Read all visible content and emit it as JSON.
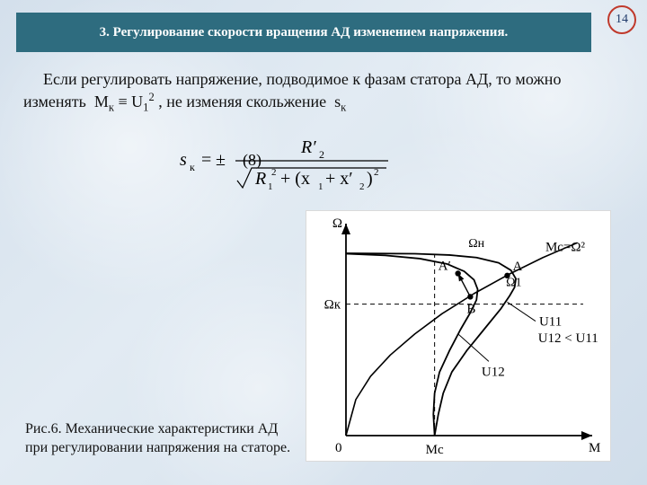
{
  "page_number": "14",
  "header": {
    "bg": "#2e6c7f",
    "color": "#ffffff",
    "text": "3. Регулирование скорости вращения АД изменением напряжения."
  },
  "paragraph": {
    "text_html": "Если регулировать напряжение, подводимое к фазам статора АД, то можно изменять&nbsp; M<sub>к</sub> ≡ U<sub>1</sub><sup>2</sup> , не изменяя скольжение&nbsp; s<sub>к</sub>"
  },
  "formula": {
    "lhs": "s",
    "lhs_sub": "к",
    "pm": "±",
    "num_R": "R′",
    "num_sub": "2",
    "den_R": "R",
    "den_R_sub": "1",
    "den_R_sup": "2",
    "den_plus": "+ (x",
    "den_x1_sub": "1",
    "den_mid": " + x′",
    "den_x2_sub": "2",
    "den_close": ")",
    "den_sq": "2",
    "eq_num": "(8)"
  },
  "caption": {
    "text": "Рис.6. Механические характеристики АД при регулировании напряжения на статоре."
  },
  "chart": {
    "background": "#ffffff",
    "axis_color": "#000000",
    "curve_color": "#000000",
    "dash_color": "#000000",
    "font": "14px Times New Roman",
    "xlabel": "M",
    "ylabel": "Ω",
    "origin_label": "0",
    "x_tick_label": "Mс",
    "y_label_left": "Ωк",
    "top_label_omegaN": "Ωн",
    "top_label_omega1": "Ω1",
    "label_A": "A",
    "label_Aprime": "A′",
    "label_B": "B",
    "label_Mc_curve": "Mс=Ω²",
    "label_U11": "U11",
    "label_U12": "U12",
    "label_U_ineq": "U12 < U11",
    "margin": {
      "l": 44,
      "r": 22,
      "t": 14,
      "b": 30
    },
    "xrange": [
      0,
      10
    ],
    "yrange": [
      0,
      10
    ],
    "dash_y": 6.2,
    "dash_x": 3.6,
    "omega_top": 8.6,
    "curve_U11": [
      [
        3.6,
        0
      ],
      [
        3.75,
        1.0
      ],
      [
        3.95,
        2.0
      ],
      [
        4.3,
        3.0
      ],
      [
        4.9,
        4.0
      ],
      [
        5.6,
        5.0
      ],
      [
        6.3,
        6.0
      ],
      [
        6.65,
        6.6
      ],
      [
        6.85,
        7.0
      ],
      [
        6.9,
        7.4
      ],
      [
        6.7,
        7.8
      ],
      [
        6.2,
        8.15
      ],
      [
        5.3,
        8.4
      ],
      [
        4.2,
        8.52
      ],
      [
        2.8,
        8.58
      ],
      [
        0,
        8.6
      ]
    ],
    "curve_U12": [
      [
        3.6,
        0
      ],
      [
        3.55,
        1.0
      ],
      [
        3.6,
        2.0
      ],
      [
        3.8,
        3.0
      ],
      [
        4.2,
        4.0
      ],
      [
        4.65,
        5.0
      ],
      [
        5.05,
        5.8
      ],
      [
        5.3,
        6.4
      ],
      [
        5.35,
        6.9
      ],
      [
        5.2,
        7.35
      ],
      [
        4.8,
        7.75
      ],
      [
        4.1,
        8.1
      ],
      [
        3.0,
        8.35
      ],
      [
        1.6,
        8.5
      ],
      [
        0,
        8.58
      ]
    ],
    "curve_Mc": [
      [
        0,
        0
      ],
      [
        0.4,
        1.7
      ],
      [
        1.0,
        2.8
      ],
      [
        1.8,
        3.8
      ],
      [
        2.8,
        4.8
      ],
      [
        3.9,
        5.75
      ],
      [
        5.2,
        6.7
      ],
      [
        6.6,
        7.6
      ],
      [
        8.0,
        8.4
      ],
      [
        9.4,
        9.1
      ]
    ],
    "point_A": [
      6.55,
      7.55
    ],
    "point_Ap": [
      4.55,
      7.65
    ],
    "point_B": [
      5.05,
      6.55
    ],
    "U11_leader_from": [
      7.7,
      5.4
    ],
    "U11_leader_to": [
      6.55,
      6.3
    ],
    "U12_leader_from": [
      5.8,
      3.5
    ],
    "U12_leader_to": [
      4.55,
      4.8
    ]
  }
}
